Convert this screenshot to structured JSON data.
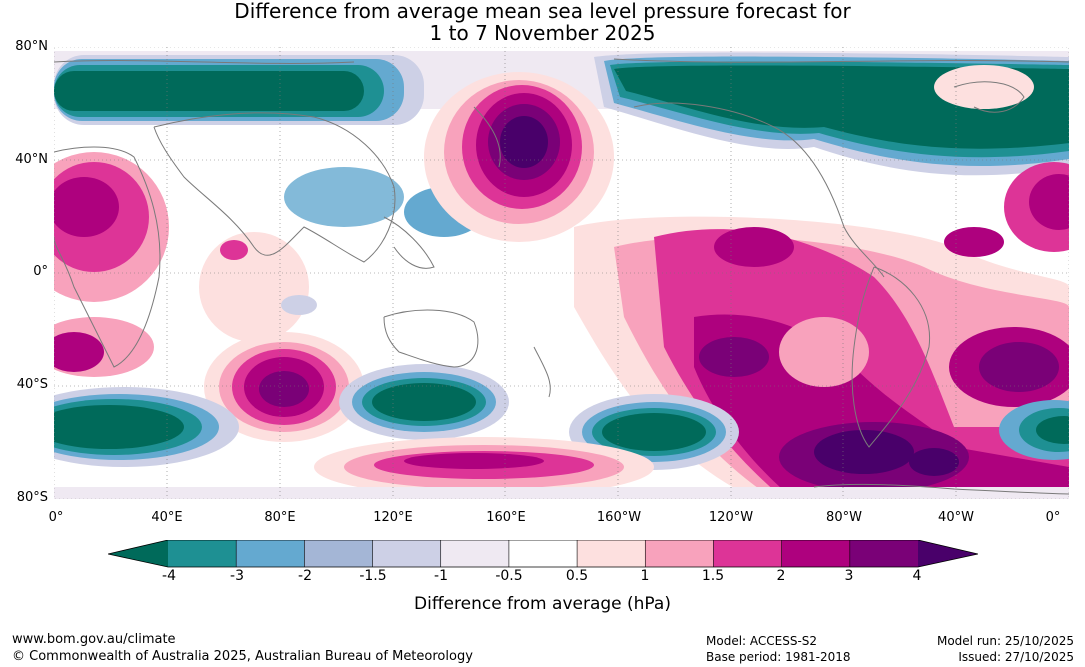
{
  "title_line1": "Difference from average mean sea level pressure forecast for",
  "title_line2": "1 to 7 November 2025",
  "lat_labels": [
    "80°N",
    "40°N",
    "0°",
    "40°S",
    "80°S"
  ],
  "lon_labels": [
    "0°",
    "40°E",
    "80°E",
    "120°E",
    "160°E",
    "160°W",
    "120°W",
    "80°W",
    "40°W",
    "0°"
  ],
  "colorbar": {
    "labels": [
      "-4",
      "-3",
      "-2",
      "-1.5",
      "-1",
      "-0.5",
      "0.5",
      "1",
      "1.5",
      "2",
      "3",
      "4"
    ],
    "colors": [
      "#006a5a",
      "#1e9093",
      "#64a9d0",
      "#a4b6d6",
      "#cdd0e6",
      "#efe9f2",
      "#ffffff",
      "#fde0df",
      "#f8a2bc",
      "#dd3497",
      "#ae017e",
      "#7a0177",
      "#49006a"
    ],
    "title": "Difference from average (hPa)"
  },
  "footer": {
    "url": "www.bom.gov.au/climate",
    "copyright": "© Commonwealth of Australia 2025, Australian Bureau of Meteorology",
    "model": "Model: ACCESS-S2",
    "base_period": "Base period: 1981-2018",
    "model_run": "Model run: 25/10/2025",
    "issued": "Issued: 27/10/2025"
  }
}
